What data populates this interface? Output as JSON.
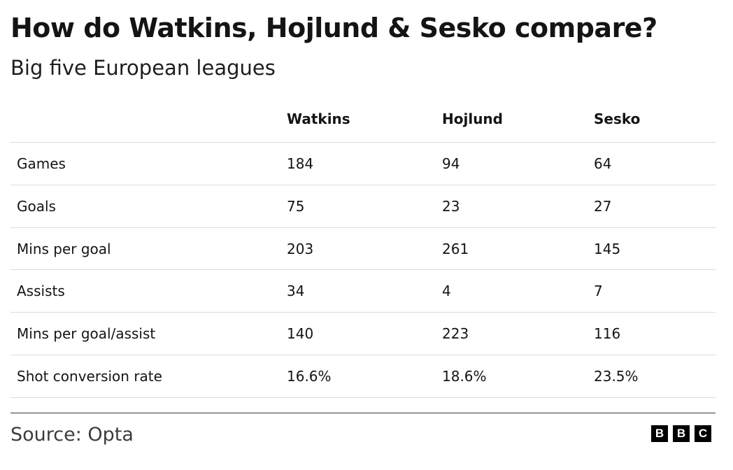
{
  "header": {
    "title": "How do Watkins, Hojlund & Sesko compare?",
    "subtitle": "Big five European leagues"
  },
  "table": {
    "columns": [
      "Watkins",
      "Hojlund",
      "Sesko"
    ],
    "rows": [
      {
        "label": "Games",
        "values": [
          184,
          94,
          64
        ]
      },
      {
        "label": "Goals",
        "values": [
          75,
          23,
          27
        ]
      },
      {
        "label": "Mins per goal",
        "values": [
          203,
          261,
          145
        ]
      },
      {
        "label": "Assists",
        "values": [
          34,
          4,
          7
        ]
      },
      {
        "label": "Mins per goal/assist",
        "values": [
          140,
          223,
          116
        ]
      },
      {
        "label": "Shot conversion rate",
        "values": [
          "16.6%",
          "18.6%",
          "23.5%"
        ]
      }
    ]
  },
  "footer": {
    "source": "Source: Opta",
    "logo": [
      "B",
      "B",
      "C"
    ]
  }
}
